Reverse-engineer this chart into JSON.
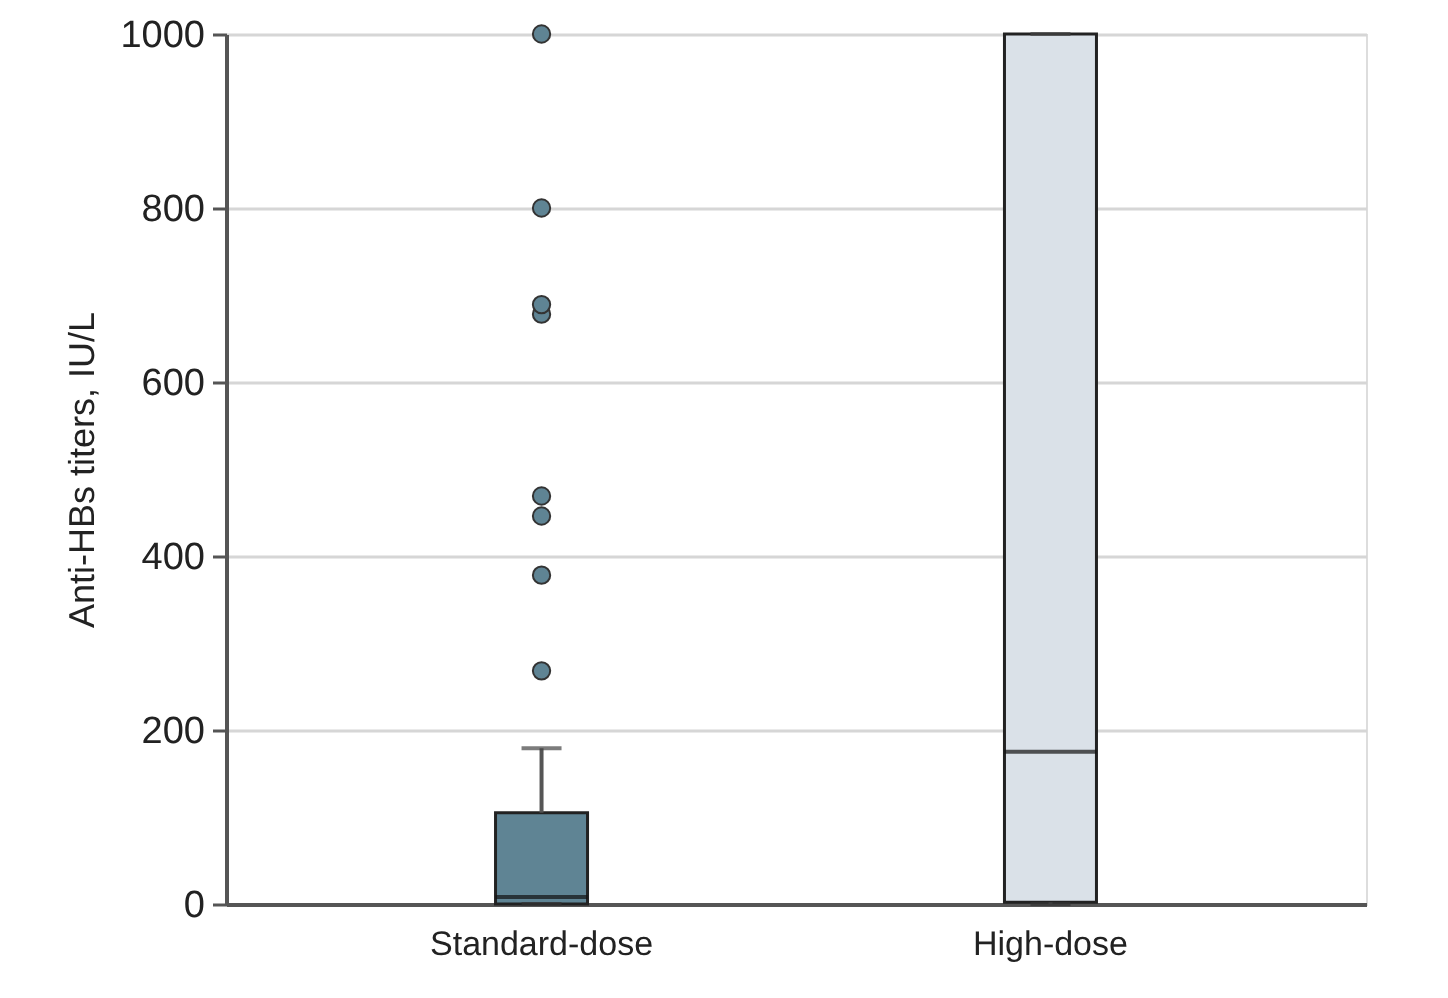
{
  "chart_data": {
    "type": "box",
    "ylabel": "Anti-HBs titers, IU/L",
    "categories": [
      "Standard-dose",
      "High-dose"
    ],
    "boxes": [
      {
        "low": 0,
        "q1": 0,
        "median": 8,
        "q3": 105,
        "high": 179,
        "outliers": [
          268,
          378,
          446,
          469,
          678,
          689,
          800,
          1000
        ]
      },
      {
        "low": 0,
        "q1": 2,
        "median": 175,
        "q3": 1000,
        "high": 1000
      }
    ],
    "colors": [
      "#5f8494",
      "#dae1e8"
    ],
    "ylim": [
      0,
      1000
    ],
    "yticks": [
      0,
      200,
      400,
      600,
      800,
      1000
    ],
    "grid": "y"
  }
}
